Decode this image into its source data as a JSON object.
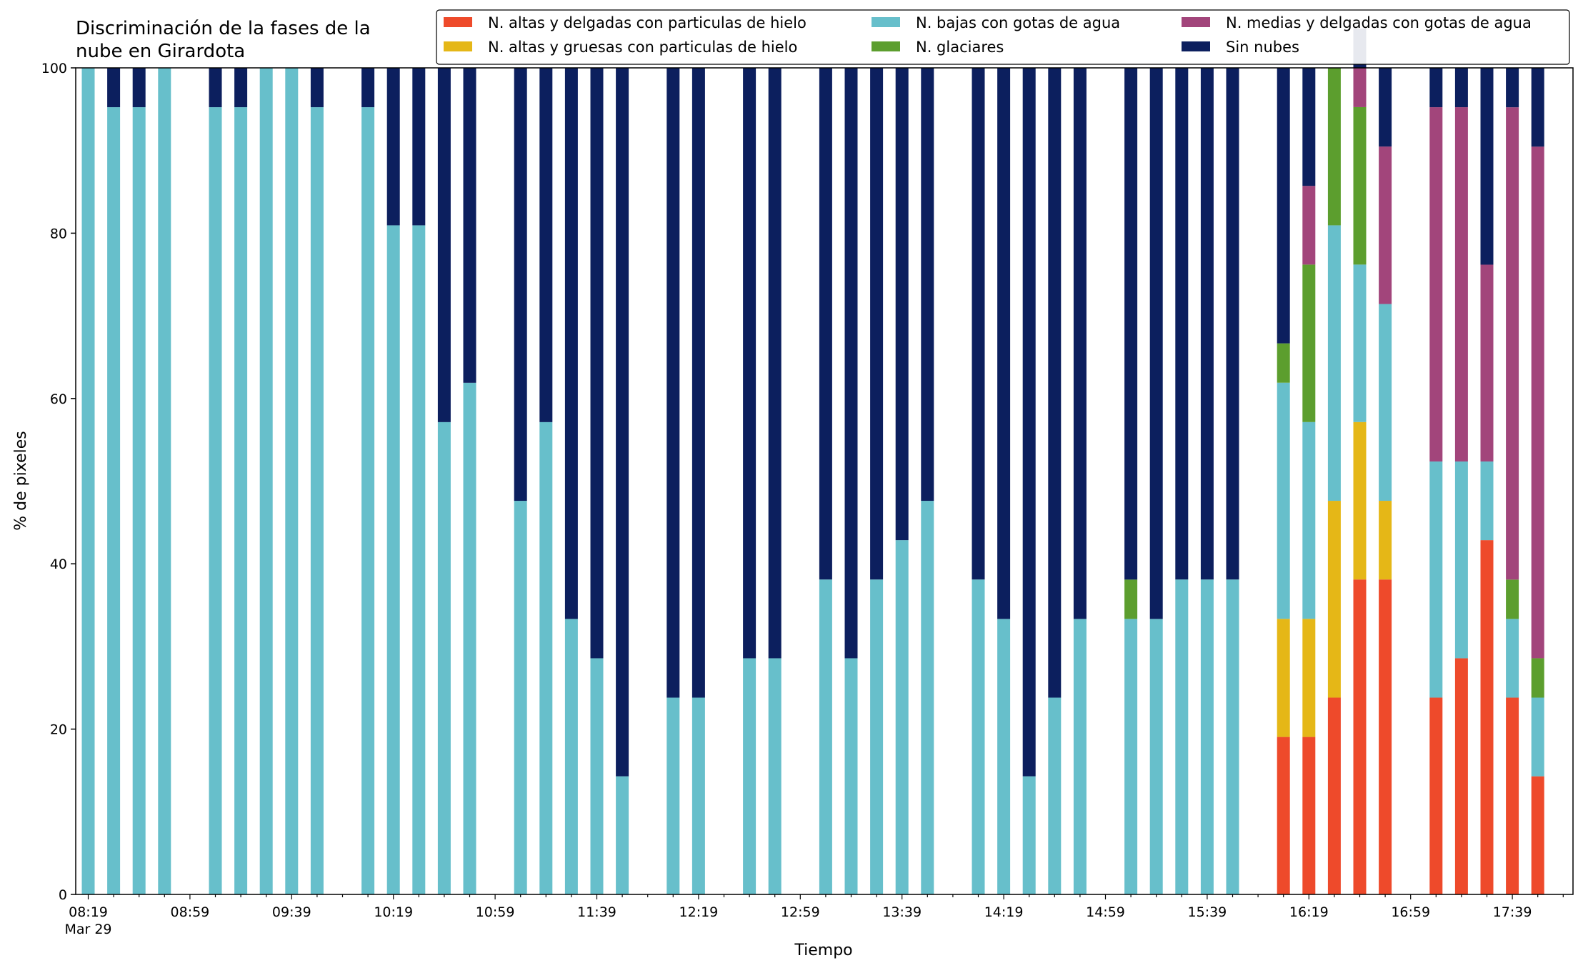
{
  "chart_data": {
    "type": "bar",
    "stacked": true,
    "title": "Discriminación de la fases de la\nnube en Girardota",
    "xlabel": "Tiempo",
    "ylabel": "% de pixeles",
    "ylim": [
      0,
      100
    ],
    "y_ticks": [
      0,
      20,
      40,
      60,
      80,
      100
    ],
    "x_tick_labels": [
      "08:19",
      "08:59",
      "09:39",
      "10:19",
      "10:59",
      "11:39",
      "12:19",
      "12:59",
      "13:39",
      "14:19",
      "14:59",
      "15:39",
      "16:19",
      "16:59",
      "17:39"
    ],
    "x_date_label": "Mar 29",
    "grid": false,
    "legend_position": "top-right",
    "series": [
      {
        "name": "N. altas y delgadas con particulas de hielo",
        "color": "#ee4a2b",
        "values": [
          0,
          0,
          0,
          0,
          null,
          0,
          0,
          0,
          0,
          0,
          null,
          0,
          0,
          0,
          0,
          0,
          null,
          0,
          0,
          0,
          0,
          0,
          null,
          0,
          0,
          null,
          0,
          0,
          null,
          0,
          0,
          0,
          0,
          0,
          null,
          0,
          0,
          0,
          0,
          0,
          null,
          0,
          0,
          0,
          0,
          0,
          null,
          19.05,
          19.05,
          23.81,
          38.1,
          38.1,
          null,
          23.81,
          28.57,
          42.86,
          23.81,
          14.29
        ]
      },
      {
        "name": "N. altas y gruesas con particulas de hielo",
        "color": "#e5b717",
        "values": [
          0,
          0,
          0,
          0,
          null,
          0,
          0,
          0,
          0,
          0,
          null,
          0,
          0,
          0,
          0,
          0,
          null,
          0,
          0,
          0,
          0,
          0,
          null,
          0,
          0,
          null,
          0,
          0,
          null,
          0,
          0,
          0,
          0,
          0,
          null,
          0,
          0,
          0,
          0,
          0,
          null,
          0,
          0,
          0,
          0,
          0,
          null,
          14.29,
          14.29,
          23.81,
          19.05,
          9.52,
          null,
          0,
          0,
          0,
          0,
          0
        ]
      },
      {
        "name": "N. bajas con gotas de agua",
        "color": "#67bfcb",
        "values": [
          100,
          95.24,
          95.24,
          100,
          null,
          95.24,
          95.24,
          100,
          100,
          95.24,
          null,
          95.24,
          80.95,
          80.95,
          57.14,
          61.9,
          null,
          47.62,
          57.14,
          33.33,
          28.57,
          14.29,
          null,
          23.81,
          23.81,
          null,
          28.57,
          28.57,
          null,
          38.1,
          28.57,
          38.1,
          42.86,
          47.62,
          null,
          38.1,
          33.33,
          14.29,
          23.81,
          33.33,
          null,
          33.33,
          33.33,
          38.1,
          38.1,
          38.1,
          null,
          28.57,
          23.81,
          33.33,
          19.05,
          23.81,
          null,
          28.57,
          23.81,
          9.52,
          9.52,
          9.52
        ]
      },
      {
        "name": "N. glaciares",
        "color": "#5c9e2e",
        "values": [
          0,
          0,
          0,
          0,
          null,
          0,
          0,
          0,
          0,
          0,
          null,
          0,
          0,
          0,
          0,
          0,
          null,
          0,
          0,
          0,
          0,
          0,
          null,
          0,
          0,
          null,
          0,
          0,
          null,
          0,
          0,
          0,
          0,
          0,
          null,
          0,
          0,
          0,
          0,
          0,
          null,
          4.76,
          0,
          0,
          0,
          0,
          null,
          4.76,
          19.05,
          19.05,
          19.05,
          0,
          null,
          0,
          0,
          0,
          4.76,
          4.76
        ]
      },
      {
        "name": "N. medias y delgadas con gotas de agua",
        "color": "#a2457b",
        "values": [
          0,
          0,
          0,
          0,
          null,
          0,
          0,
          0,
          0,
          0,
          null,
          0,
          0,
          0,
          0,
          0,
          null,
          0,
          0,
          0,
          0,
          0,
          null,
          0,
          0,
          null,
          0,
          0,
          null,
          0,
          0,
          0,
          0,
          0,
          null,
          0,
          0,
          0,
          0,
          0,
          null,
          0,
          0,
          0,
          0,
          0,
          null,
          0,
          9.52,
          0,
          4.76,
          19.05,
          null,
          42.86,
          42.86,
          23.81,
          57.14,
          61.9
        ]
      },
      {
        "name": "Sin nubes",
        "color": "#0c1f5e",
        "values": [
          0,
          4.76,
          4.76,
          0,
          null,
          4.76,
          4.76,
          0,
          0,
          4.76,
          null,
          4.76,
          19.05,
          19.05,
          42.86,
          38.1,
          null,
          52.38,
          42.86,
          66.67,
          71.43,
          85.71,
          null,
          76.19,
          76.19,
          null,
          71.43,
          71.43,
          null,
          61.9,
          71.43,
          61.9,
          57.14,
          52.38,
          null,
          61.9,
          66.67,
          85.71,
          76.19,
          66.67,
          null,
          61.9,
          66.67,
          61.9,
          61.9,
          61.9,
          null,
          33.33,
          14.29,
          0,
          4.76,
          9.52,
          null,
          4.76,
          4.76,
          23.81,
          4.76,
          9.52
        ]
      }
    ]
  }
}
